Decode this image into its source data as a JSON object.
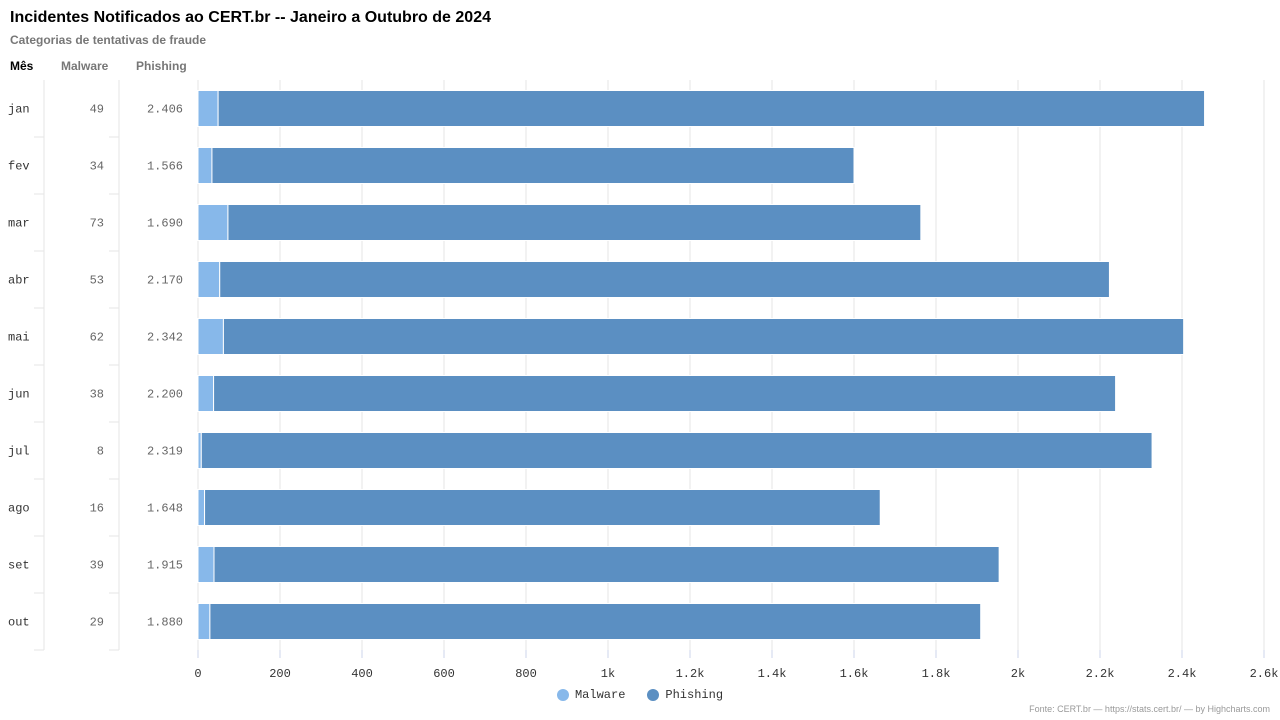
{
  "header": {
    "title": "Incidentes Notificados ao CERT.br -- Janeiro a Outubro de 2024",
    "subtitle": "Categorias de tentativas de fraude"
  },
  "columns": {
    "month": "Mês",
    "malware": "Malware",
    "phishing": "Phishing"
  },
  "chart_data": {
    "type": "bar",
    "orientation": "horizontal",
    "stacked": true,
    "categories": [
      "jan",
      "fev",
      "mar",
      "abr",
      "mai",
      "jun",
      "jul",
      "ago",
      "set",
      "out"
    ],
    "series": [
      {
        "name": "Malware",
        "color": "#87b8ea",
        "values": [
          49,
          34,
          73,
          53,
          62,
          38,
          8,
          16,
          39,
          29
        ]
      },
      {
        "name": "Phishing",
        "color": "#5b8fc2",
        "values": [
          2406,
          1566,
          1690,
          2170,
          2342,
          2200,
          2319,
          1648,
          1915,
          1880
        ]
      }
    ],
    "table_values": {
      "malware": [
        "49",
        "34",
        "73",
        "53",
        "62",
        "38",
        "8",
        "16",
        "39",
        "29"
      ],
      "phishing": [
        "2.406",
        "1.566",
        "1.690",
        "2.170",
        "2.342",
        "2.200",
        "2.319",
        "1.648",
        "1.915",
        "1.880"
      ]
    },
    "xlim": [
      0,
      2600
    ],
    "tick_values": [
      0,
      200,
      400,
      600,
      800,
      1000,
      1200,
      1400,
      1600,
      1800,
      2000,
      2200,
      2400,
      2600
    ],
    "tick_labels": [
      "0",
      "200",
      "400",
      "600",
      "800",
      "1k",
      "1.2k",
      "1.4k",
      "1.6k",
      "1.8k",
      "2k",
      "2.2k",
      "2.4k",
      "2.6k"
    ],
    "grid": true,
    "legend_position": "bottom-center"
  },
  "credits": "Fonte: CERT.br — https://stats.cert.br/ — by Highcharts.com"
}
